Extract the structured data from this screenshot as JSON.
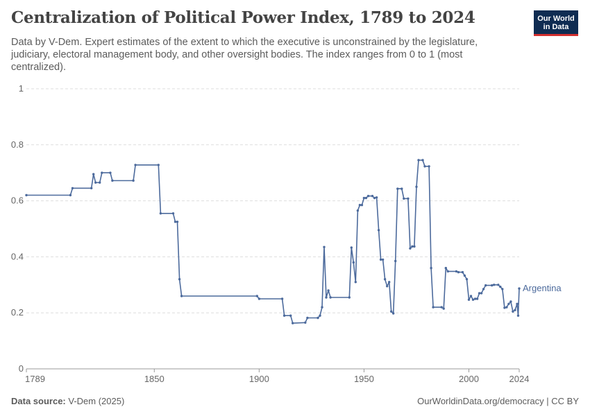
{
  "header": {
    "title": "Centralization of Political Power Index, 1789 to 2024",
    "subtitle": "Data by V-Dem. Expert estimates of the extent to which the executive is unconstrained by the legislature, judiciary, electoral management body, and other oversight bodies. The index ranges from 0 to 1 (most centralized)."
  },
  "logo": {
    "line1": "Our World",
    "line2": "in Data"
  },
  "footer": {
    "source_label": "Data source:",
    "source": "V-Dem (2025)",
    "link": "OurWorldinData.org/democracy | CC BY"
  },
  "colors": {
    "series": "#4c6a9c",
    "grid": "#dddddd",
    "axis": "#666666"
  },
  "chart_data": {
    "type": "line",
    "title": "Centralization of Political Power Index, 1789 to 2024",
    "xlabel": "",
    "ylabel": "",
    "xlim": [
      1789,
      2024
    ],
    "ylim": [
      0,
      1
    ],
    "x_ticks": [
      1789,
      1850,
      1900,
      1950,
      2000,
      2024
    ],
    "y_ticks": [
      0,
      0.2,
      0.4,
      0.6,
      0.8,
      1
    ],
    "y_tick_labels": [
      "0",
      "0.2",
      "0.4",
      "0.6",
      "0.8",
      "1"
    ],
    "grid": true,
    "series": [
      {
        "name": "Argentina",
        "points": [
          [
            1789,
            0.62
          ],
          [
            1810,
            0.62
          ],
          [
            1811,
            0.645
          ],
          [
            1820,
            0.645
          ],
          [
            1821,
            0.695
          ],
          [
            1822,
            0.665
          ],
          [
            1824,
            0.665
          ],
          [
            1825,
            0.7
          ],
          [
            1829,
            0.7
          ],
          [
            1830,
            0.672
          ],
          [
            1840,
            0.672
          ],
          [
            1841,
            0.728
          ],
          [
            1852,
            0.728
          ],
          [
            1853,
            0.555
          ],
          [
            1859,
            0.555
          ],
          [
            1860,
            0.525
          ],
          [
            1861,
            0.525
          ],
          [
            1862,
            0.32
          ],
          [
            1863,
            0.26
          ],
          [
            1899,
            0.26
          ],
          [
            1900,
            0.25
          ],
          [
            1911,
            0.25
          ],
          [
            1912,
            0.19
          ],
          [
            1915,
            0.19
          ],
          [
            1916,
            0.163
          ],
          [
            1922,
            0.165
          ],
          [
            1923,
            0.182
          ],
          [
            1928,
            0.182
          ],
          [
            1929,
            0.19
          ],
          [
            1930,
            0.22
          ],
          [
            1931,
            0.435
          ],
          [
            1932,
            0.255
          ],
          [
            1933,
            0.28
          ],
          [
            1934,
            0.255
          ],
          [
            1943,
            0.255
          ],
          [
            1944,
            0.433
          ],
          [
            1945,
            0.38
          ],
          [
            1946,
            0.31
          ],
          [
            1947,
            0.565
          ],
          [
            1948,
            0.585
          ],
          [
            1949,
            0.585
          ],
          [
            1950,
            0.61
          ],
          [
            1951,
            0.61
          ],
          [
            1952,
            0.617
          ],
          [
            1954,
            0.617
          ],
          [
            1955,
            0.61
          ],
          [
            1956,
            0.612
          ],
          [
            1957,
            0.495
          ],
          [
            1958,
            0.39
          ],
          [
            1959,
            0.39
          ],
          [
            1960,
            0.32
          ],
          [
            1961,
            0.295
          ],
          [
            1962,
            0.31
          ],
          [
            1963,
            0.205
          ],
          [
            1964,
            0.198
          ],
          [
            1965,
            0.385
          ],
          [
            1966,
            0.643
          ],
          [
            1968,
            0.643
          ],
          [
            1969,
            0.608
          ],
          [
            1971,
            0.608
          ],
          [
            1972,
            0.43
          ],
          [
            1973,
            0.437
          ],
          [
            1974,
            0.437
          ],
          [
            1975,
            0.65
          ],
          [
            1976,
            0.745
          ],
          [
            1978,
            0.745
          ],
          [
            1979,
            0.723
          ],
          [
            1981,
            0.723
          ],
          [
            1982,
            0.36
          ],
          [
            1983,
            0.22
          ],
          [
            1987,
            0.22
          ],
          [
            1988,
            0.215
          ],
          [
            1989,
            0.36
          ],
          [
            1990,
            0.348
          ],
          [
            1994,
            0.348
          ],
          [
            1995,
            0.345
          ],
          [
            1997,
            0.345
          ],
          [
            1998,
            0.333
          ],
          [
            1999,
            0.32
          ],
          [
            2000,
            0.247
          ],
          [
            2001,
            0.26
          ],
          [
            2002,
            0.247
          ],
          [
            2003,
            0.25
          ],
          [
            2004,
            0.25
          ],
          [
            2005,
            0.27
          ],
          [
            2006,
            0.27
          ],
          [
            2007,
            0.285
          ],
          [
            2008,
            0.298
          ],
          [
            2011,
            0.298
          ],
          [
            2012,
            0.3
          ],
          [
            2014,
            0.3
          ],
          [
            2015,
            0.293
          ],
          [
            2016,
            0.285
          ],
          [
            2017,
            0.218
          ],
          [
            2018,
            0.22
          ],
          [
            2019,
            0.232
          ],
          [
            2020,
            0.24
          ],
          [
            2021,
            0.205
          ],
          [
            2022,
            0.21
          ],
          [
            2023,
            0.232
          ],
          [
            2023.5,
            0.19
          ],
          [
            2024,
            0.287
          ]
        ]
      }
    ]
  }
}
